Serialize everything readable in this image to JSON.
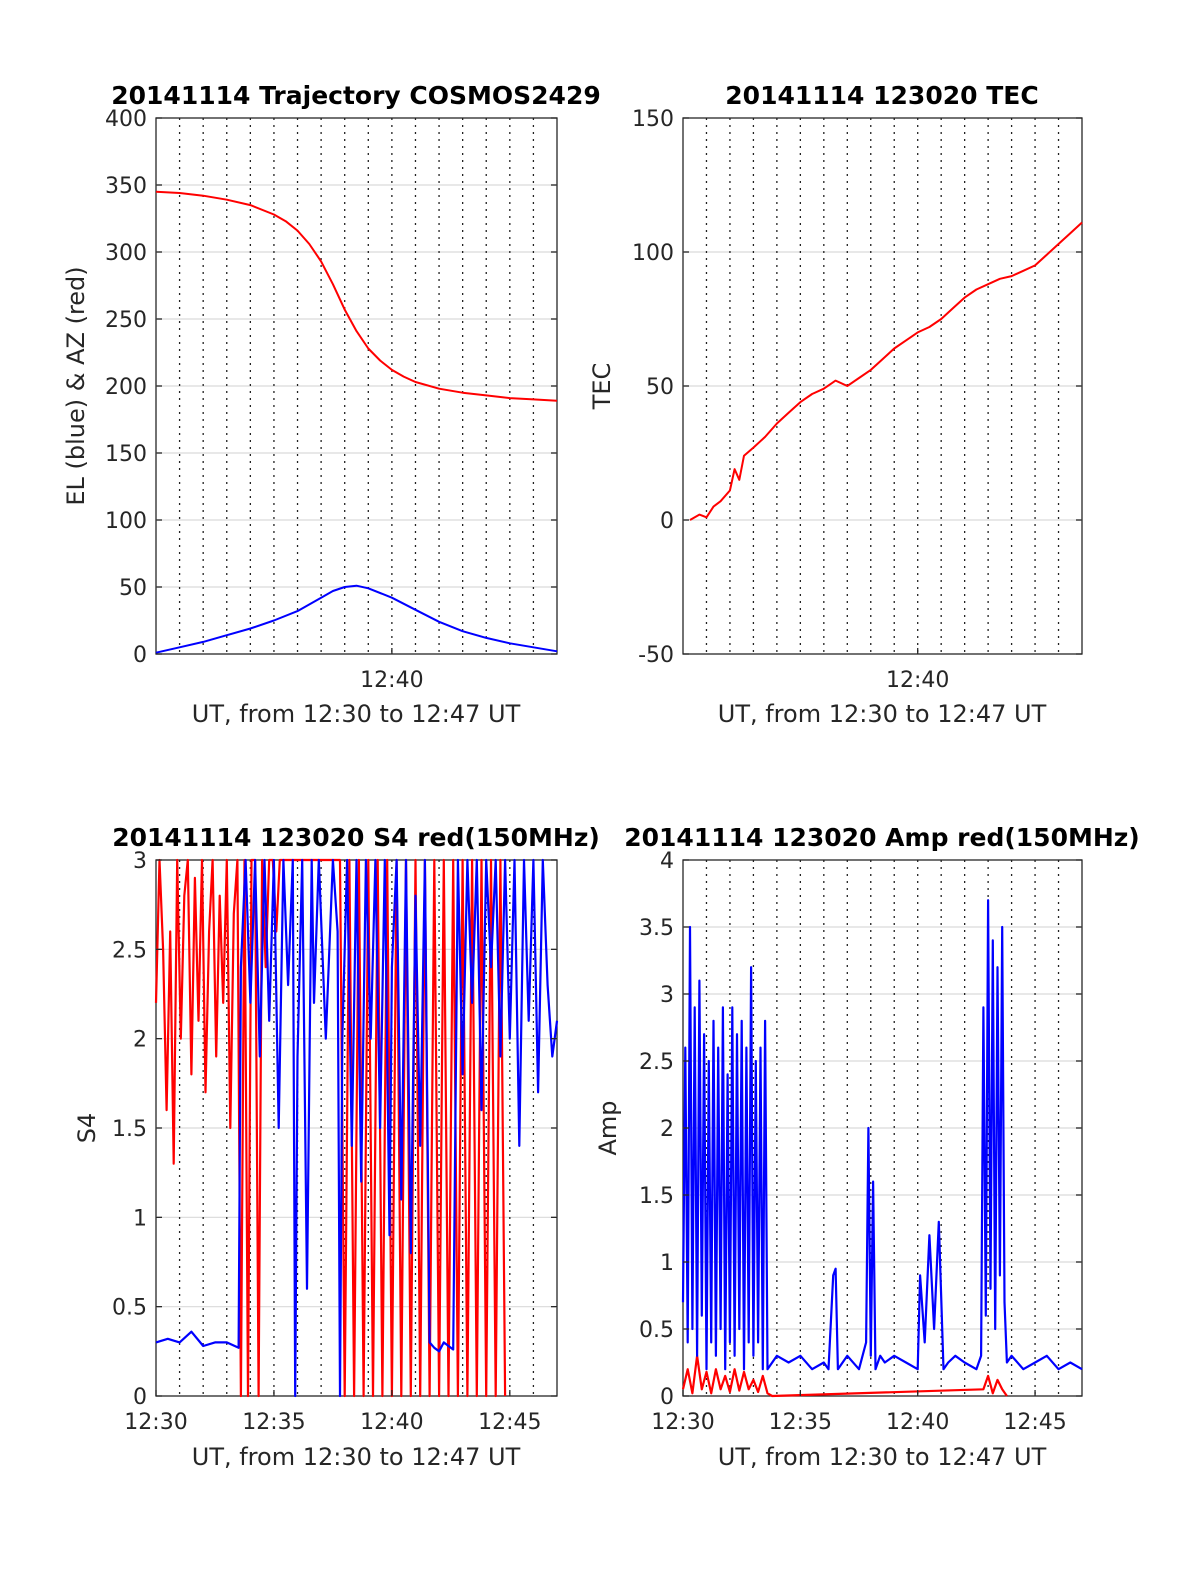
{
  "chart_data": [
    {
      "type": "line",
      "title": "20141114 Trajectory COSMOS2429",
      "xlabel": "UT, from 12:30 to 12:47 UT",
      "ylabel": "EL (blue) & AZ (red)",
      "xlim": [
        0,
        17
      ],
      "ylim": [
        0,
        400
      ],
      "yticks": [
        0,
        50,
        100,
        150,
        200,
        250,
        300,
        350,
        400
      ],
      "yticklabels": [
        "0",
        "50",
        "100",
        "150",
        "200",
        "250",
        "300",
        "350",
        "400"
      ],
      "xticks": [
        10
      ],
      "xticklabels": [
        "12:40"
      ],
      "grid": true,
      "series": [
        {
          "color": "#ff0000",
          "x": [
            0.0,
            1.0,
            2.0,
            3.0,
            4.0,
            5.0,
            5.5,
            6.0,
            6.5,
            7.0,
            7.5,
            8.0,
            8.5,
            9.0,
            9.5,
            10.0,
            10.5,
            11.0,
            12.0,
            13.0,
            14.0,
            15.0,
            16.0,
            17.0
          ],
          "y": [
            345,
            344,
            342,
            339,
            335,
            328,
            323,
            316,
            306,
            293,
            276,
            257,
            241,
            228,
            219,
            212,
            207,
            203,
            198,
            195,
            193,
            191,
            190,
            189
          ]
        },
        {
          "color": "#0000ff",
          "x": [
            0.0,
            1.0,
            2.0,
            3.0,
            4.0,
            5.0,
            6.0,
            7.0,
            7.5,
            8.0,
            8.5,
            9.0,
            10.0,
            11.0,
            12.0,
            13.0,
            14.0,
            15.0,
            16.0,
            17.0
          ],
          "y": [
            1,
            5,
            9,
            14,
            19,
            25,
            32,
            42,
            47,
            50,
            51,
            49,
            42,
            33,
            24,
            17,
            12,
            8,
            5,
            2
          ]
        }
      ]
    },
    {
      "type": "line",
      "title": "20141114 123020 TEC",
      "xlabel": "UT, from 12:30 to 12:47 UT",
      "ylabel": "TEC",
      "xlim": [
        0,
        17
      ],
      "ylim": [
        -50,
        150
      ],
      "yticks": [
        -50,
        0,
        50,
        100,
        150
      ],
      "yticklabels": [
        "-50",
        "0",
        "50",
        "100",
        "150"
      ],
      "xticks": [
        10
      ],
      "xticklabels": [
        "12:40"
      ],
      "grid": true,
      "series": [
        {
          "color": "#ff0000",
          "x": [
            0.3,
            0.7,
            1.0,
            1.3,
            1.6,
            2.0,
            2.2,
            2.4,
            2.6,
            3.0,
            3.5,
            4.0,
            4.5,
            5.0,
            5.5,
            6.0,
            6.5,
            7.0,
            7.5,
            8.0,
            8.5,
            9.0,
            9.5,
            10.0,
            10.5,
            11.0,
            11.5,
            12.0,
            12.5,
            13.0,
            13.5,
            14.0,
            14.5,
            15.0,
            15.5,
            16.0,
            16.5,
            17.0
          ],
          "y": [
            0,
            2,
            1,
            5,
            7,
            11,
            19,
            15,
            24,
            27,
            31,
            36,
            40,
            44,
            47,
            49,
            52,
            50,
            53,
            56,
            60,
            64,
            67,
            70,
            72,
            75,
            79,
            83,
            86,
            88,
            90,
            91,
            93,
            95,
            99,
            103,
            107,
            111
          ]
        }
      ]
    },
    {
      "type": "line",
      "title": "20141114 123020 S4 red(150MHz)",
      "xlabel": "UT, from 12:30 to 12:47 UT",
      "ylabel": "S4",
      "xlim": [
        0,
        17
      ],
      "ylim": [
        0,
        3
      ],
      "yticks": [
        0,
        0.5,
        1,
        1.5,
        2,
        2.5,
        3
      ],
      "yticklabels": [
        "0",
        "0.5",
        "1",
        "1.5",
        "2",
        "2.5",
        "3"
      ],
      "xticks": [
        0,
        5,
        10,
        15
      ],
      "xticklabels": [
        "12:30",
        "12:35",
        "12:40",
        "12:45"
      ],
      "grid": true,
      "series": [
        {
          "color": "#ff0000",
          "x": [
            0.0,
            0.15,
            0.3,
            0.45,
            0.6,
            0.75,
            0.9,
            1.05,
            1.2,
            1.35,
            1.5,
            1.65,
            1.8,
            1.95,
            2.1,
            2.25,
            2.4,
            2.55,
            2.7,
            2.85,
            3.0,
            3.15,
            3.3,
            3.45,
            3.6,
            3.75,
            3.9,
            4.05,
            4.2,
            4.35,
            4.5,
            4.65,
            4.8,
            4.95,
            5.1,
            5.25,
            5.4,
            6.0,
            6.5,
            7.0,
            7.5,
            7.8,
            8.0,
            8.2,
            8.4,
            8.6,
            8.8,
            9.0,
            9.2,
            9.4,
            9.6,
            9.8,
            10.0,
            10.2,
            10.4,
            10.6,
            10.8,
            11.0,
            11.2,
            11.4,
            11.6,
            11.8,
            12.0,
            12.2,
            12.4,
            12.6,
            12.8,
            13.0,
            13.2,
            13.4,
            13.6,
            13.8,
            14.0,
            14.2,
            14.4,
            14.6,
            14.8
          ],
          "y": [
            2.2,
            3.0,
            2.5,
            1.6,
            2.6,
            1.3,
            3.0,
            2.0,
            2.8,
            3.0,
            1.8,
            2.9,
            2.1,
            3.0,
            1.7,
            2.6,
            3.0,
            1.9,
            2.8,
            2.2,
            3.0,
            1.5,
            2.7,
            3.0,
            0.0,
            3.0,
            0.0,
            3.0,
            3.0,
            0.0,
            3.0,
            2.4,
            3.0,
            3.0,
            2.6,
            3.0,
            3.0,
            3.0,
            3.0,
            3.0,
            3.0,
            3.0,
            0.0,
            3.0,
            0.0,
            3.0,
            0.0,
            3.0,
            0.0,
            3.0,
            0.0,
            3.0,
            0.0,
            3.0,
            0.0,
            3.0,
            0.0,
            3.0,
            0.0,
            3.0,
            0.0,
            3.0,
            0.0,
            3.0,
            0.0,
            3.0,
            0.0,
            3.0,
            0.0,
            3.0,
            0.0,
            3.0,
            0.0,
            3.0,
            0.0,
            3.0,
            0.0
          ]
        },
        {
          "color": "#0000ff",
          "x": [
            0.0,
            0.5,
            1.0,
            1.5,
            2.0,
            2.5,
            3.0,
            3.5,
            3.6,
            3.8,
            4.0,
            4.2,
            4.4,
            4.6,
            4.8,
            5.0,
            5.2,
            5.4,
            5.6,
            5.8,
            5.9,
            6.0,
            6.2,
            6.4,
            6.6,
            6.7,
            6.9,
            7.2,
            7.5,
            7.7,
            7.8,
            7.9,
            8.1,
            8.3,
            8.5,
            8.7,
            8.9,
            9.1,
            9.3,
            9.5,
            9.7,
            9.9,
            10.0,
            10.2,
            10.4,
            10.6,
            10.8,
            11.0,
            11.2,
            11.4,
            11.6,
            11.8,
            12.0,
            12.2,
            12.4,
            12.6,
            12.8,
            13.0,
            13.2,
            13.4,
            13.6,
            13.8,
            14.0,
            14.2,
            14.4,
            14.6,
            14.8,
            15.0,
            15.2,
            15.4,
            15.6,
            15.8,
            16.0,
            16.2,
            16.4,
            16.6,
            16.8,
            17.0
          ],
          "y": [
            0.3,
            0.32,
            0.3,
            0.36,
            0.28,
            0.3,
            0.3,
            0.27,
            2.4,
            3.0,
            2.2,
            3.0,
            1.9,
            3.0,
            2.1,
            3.0,
            1.5,
            3.0,
            2.3,
            3.0,
            0.0,
            1.9,
            3.0,
            0.6,
            3.0,
            2.2,
            3.0,
            2.0,
            3.0,
            2.6,
            0.0,
            2.0,
            3.0,
            1.4,
            3.0,
            1.2,
            3.0,
            2.0,
            3.0,
            1.5,
            3.0,
            0.9,
            2.4,
            3.0,
            1.1,
            3.0,
            0.8,
            2.8,
            1.4,
            3.0,
            0.3,
            0.27,
            0.25,
            0.3,
            0.28,
            0.26,
            3.0,
            1.8,
            3.0,
            2.2,
            3.0,
            1.6,
            3.0,
            2.4,
            3.0,
            1.9,
            3.0,
            2.0,
            3.0,
            1.4,
            3.0,
            2.1,
            3.0,
            1.7,
            3.0,
            2.3,
            1.9,
            2.1
          ]
        }
      ]
    },
    {
      "type": "line",
      "title": "20141114 123020 Amp red(150MHz)",
      "xlabel": "UT, from 12:30 to 12:47 UT",
      "ylabel": "Amp",
      "xlim": [
        0,
        17
      ],
      "ylim": [
        0,
        4
      ],
      "yticks": [
        0,
        0.5,
        1,
        1.5,
        2,
        2.5,
        3,
        3.5,
        4
      ],
      "yticklabels": [
        "0",
        "0.5",
        "1",
        "1.5",
        "2",
        "2.5",
        "3",
        "3.5",
        "4"
      ],
      "xticks": [
        0,
        5,
        10,
        15
      ],
      "xticklabels": [
        "12:30",
        "12:35",
        "12:40",
        "12:45"
      ],
      "grid": true,
      "series": [
        {
          "color": "#ff0000",
          "x": [
            0.0,
            0.2,
            0.4,
            0.6,
            0.8,
            1.0,
            1.2,
            1.4,
            1.6,
            1.8,
            2.0,
            2.2,
            2.4,
            2.6,
            2.8,
            3.0,
            3.2,
            3.4,
            3.6,
            3.8,
            12.8,
            13.0,
            13.2,
            13.4,
            13.6,
            13.8
          ],
          "y": [
            0.05,
            0.2,
            0.02,
            0.3,
            0.05,
            0.18,
            0.02,
            0.2,
            0.05,
            0.15,
            0.03,
            0.2,
            0.04,
            0.18,
            0.05,
            0.12,
            0.03,
            0.15,
            0.02,
            0.0,
            0.05,
            0.15,
            0.02,
            0.12,
            0.05,
            0.0
          ]
        },
        {
          "color": "#0000ff",
          "x": [
            0.0,
            0.1,
            0.2,
            0.3,
            0.4,
            0.5,
            0.6,
            0.7,
            0.8,
            0.9,
            1.0,
            1.1,
            1.2,
            1.3,
            1.4,
            1.5,
            1.6,
            1.7,
            1.8,
            1.9,
            2.0,
            2.1,
            2.2,
            2.3,
            2.4,
            2.5,
            2.6,
            2.7,
            2.8,
            2.9,
            3.0,
            3.1,
            3.2,
            3.3,
            3.4,
            3.5,
            3.6,
            4.0,
            4.5,
            5.0,
            5.5,
            6.0,
            6.2,
            6.4,
            6.5,
            6.6,
            6.8,
            7.0,
            7.5,
            7.8,
            7.9,
            8.0,
            8.1,
            8.2,
            8.4,
            8.6,
            9.0,
            9.5,
            10.0,
            10.1,
            10.3,
            10.5,
            10.7,
            10.9,
            11.1,
            11.3,
            11.6,
            12.0,
            12.5,
            12.7,
            12.8,
            12.9,
            13.0,
            13.1,
            13.2,
            13.3,
            13.4,
            13.5,
            13.6,
            13.7,
            13.8,
            14.0,
            14.5,
            15.0,
            15.5,
            16.0,
            16.5,
            17.0
          ],
          "y": [
            0.7,
            2.6,
            0.4,
            3.5,
            0.5,
            2.9,
            0.3,
            3.1,
            0.6,
            2.7,
            0.2,
            2.5,
            0.4,
            2.8,
            0.3,
            2.6,
            0.5,
            2.9,
            0.2,
            2.4,
            0.4,
            2.9,
            0.3,
            2.7,
            0.5,
            2.8,
            0.2,
            2.6,
            0.4,
            3.2,
            0.3,
            2.5,
            0.4,
            2.6,
            0.2,
            2.8,
            0.2,
            0.3,
            0.25,
            0.3,
            0.2,
            0.25,
            0.2,
            0.9,
            0.95,
            0.2,
            0.25,
            0.3,
            0.2,
            0.4,
            2.0,
            0.3,
            1.6,
            0.2,
            0.3,
            0.25,
            0.3,
            0.25,
            0.2,
            0.9,
            0.4,
            1.2,
            0.5,
            1.3,
            0.2,
            0.25,
            0.3,
            0.25,
            0.2,
            0.3,
            2.9,
            0.6,
            3.7,
            0.8,
            3.4,
            0.5,
            3.2,
            0.9,
            3.5,
            0.7,
            0.25,
            0.3,
            0.2,
            0.25,
            0.3,
            0.2,
            0.25,
            0.2
          ]
        }
      ]
    }
  ]
}
